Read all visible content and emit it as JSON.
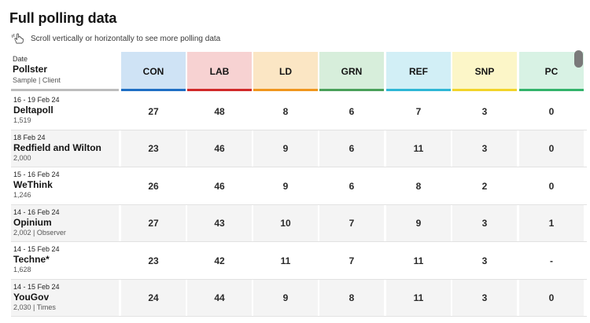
{
  "title": "Full polling data",
  "hint": {
    "text": "Scroll vertically or horizontally to see more polling data",
    "icon": "hand-swipe-icon"
  },
  "header": {
    "date_label": "Date",
    "pollster_label": "Pollster",
    "sample_label": "Sample | Client"
  },
  "parties": [
    {
      "label": "CON",
      "bg": "#cfe3f5",
      "bar": "#1f6fc4"
    },
    {
      "label": "LAB",
      "bg": "#f7d2d2",
      "bar": "#d12a2a"
    },
    {
      "label": "LD",
      "bg": "#fbe6c4",
      "bar": "#f0961e"
    },
    {
      "label": "GRN",
      "bg": "#d7eedb",
      "bar": "#4aa05a"
    },
    {
      "label": "REF",
      "bg": "#d2eff6",
      "bar": "#2fb7d6"
    },
    {
      "label": "SNP",
      "bg": "#fcf6c8",
      "bar": "#f2d42a"
    },
    {
      "label": "PC",
      "bg": "#d8f2e4",
      "bar": "#33b36b"
    }
  ],
  "rows": [
    {
      "date": "16 - 19 Feb 24",
      "pollster": "Deltapoll",
      "sample": "1,519",
      "values": [
        "27",
        "48",
        "8",
        "6",
        "7",
        "3",
        "0"
      ]
    },
    {
      "date": "18 Feb 24",
      "pollster": "Redfield and Wilton",
      "sample": "2,000",
      "values": [
        "23",
        "46",
        "9",
        "6",
        "11",
        "3",
        "0"
      ]
    },
    {
      "date": "15 - 16 Feb 24",
      "pollster": "WeThink",
      "sample": "1,246",
      "values": [
        "26",
        "46",
        "9",
        "6",
        "8",
        "2",
        "0"
      ]
    },
    {
      "date": "14 - 16 Feb 24",
      "pollster": "Opinium",
      "sample": "2,002 | Observer",
      "values": [
        "27",
        "43",
        "10",
        "7",
        "9",
        "3",
        "1"
      ]
    },
    {
      "date": "14 - 15 Feb 24",
      "pollster": "Techne*",
      "sample": "1,628",
      "values": [
        "23",
        "42",
        "11",
        "7",
        "11",
        "3",
        "-"
      ]
    },
    {
      "date": "14 - 15 Feb 24",
      "pollster": "YouGov",
      "sample": "2,030 | Times",
      "values": [
        "24",
        "44",
        "9",
        "8",
        "11",
        "3",
        "0"
      ]
    }
  ]
}
